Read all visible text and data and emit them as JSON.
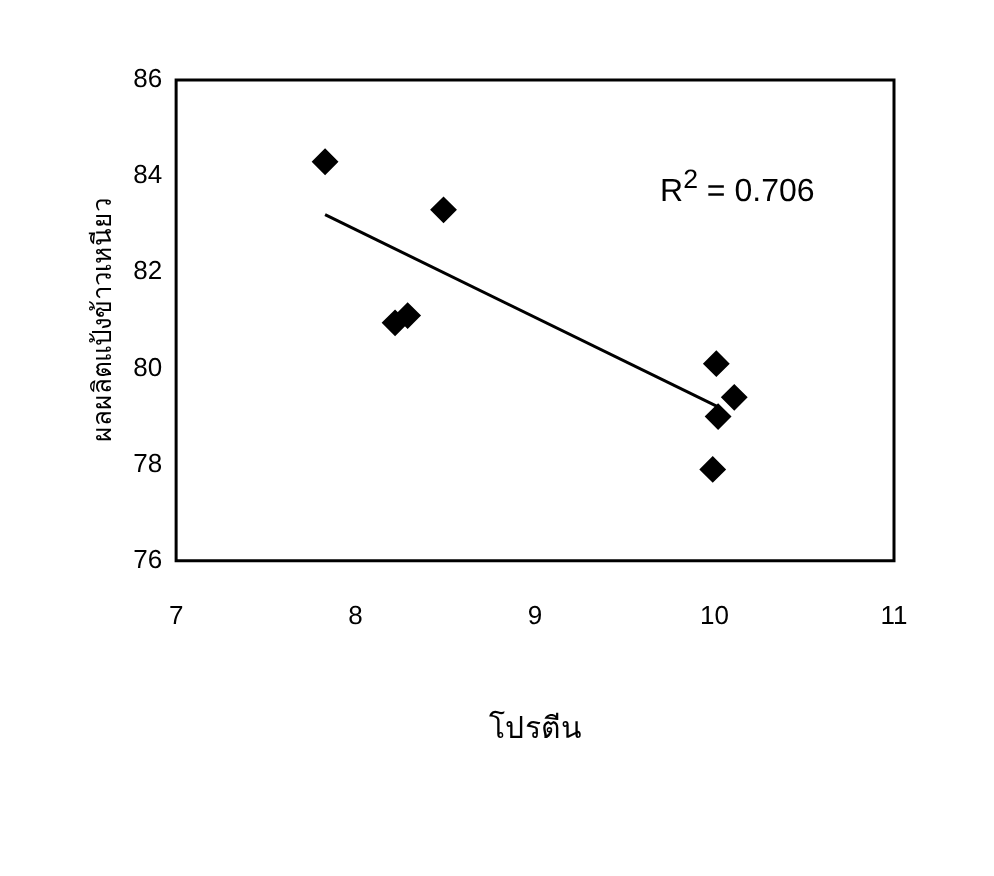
{
  "chart_data": {
    "type": "scatter",
    "xlabel": "โปรตีน",
    "ylabel": "ผลผลิตแป้งข้าวเหนียว",
    "xlim": [
      7,
      11
    ],
    "xticks": [
      7,
      8,
      9,
      10,
      11
    ],
    "ylim": [
      76,
      86
    ],
    "yticks": [
      76,
      78,
      80,
      82,
      84,
      86
    ],
    "grid": false,
    "legend": false,
    "marker": "diamond",
    "annotations": [
      "R$^{2}$ = 0.706"
    ],
    "series": [
      {
        "color": "#000000",
        "x": [
          7.83,
          8.49,
          8.22,
          8.29,
          10.01,
          10.11,
          10.02,
          9.99
        ],
        "values": [
          84.3,
          83.3,
          80.95,
          81.1,
          80.1,
          79.4,
          79.0,
          77.9
        ]
      },
      {
        "type": "line",
        "marker": "none",
        "color": "#000000",
        "x": [
          7.83,
          10.02
        ],
        "values": [
          83.2,
          79.2
        ]
      }
    ]
  }
}
